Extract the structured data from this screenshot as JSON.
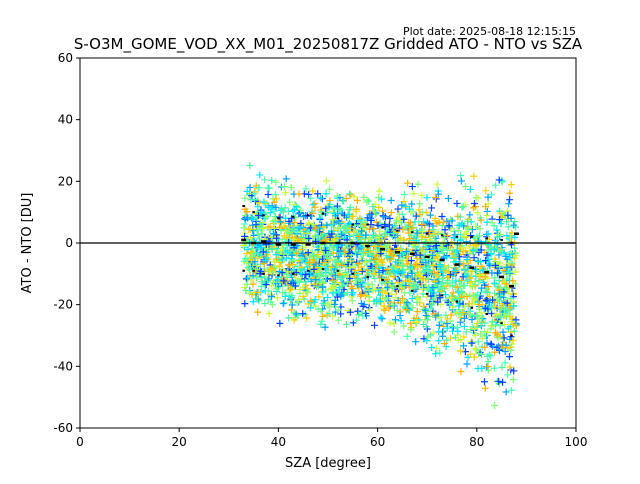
{
  "figure": {
    "plot_date": "Plot date: 2025-08-18 12:15:15",
    "title": "S-O3M_GOME_VOD_XX_M01_20250817Z Gridded ATO - NTO vs SZA"
  },
  "chart_data": {
    "type": "scatter",
    "title": "S-O3M_GOME_VOD_XX_M01_20250817Z Gridded ATO - NTO vs SZA",
    "xlabel": "SZA [degree]",
    "ylabel": "ATO - NTO [DU]",
    "xlim": [
      0,
      100
    ],
    "ylim": [
      -60,
      60
    ],
    "xticks": [
      0,
      20,
      40,
      60,
      80,
      100
    ],
    "yticks": [
      -60,
      -40,
      -20,
      0,
      20,
      40,
      60
    ],
    "grid": false,
    "zero_line": 0,
    "marker": "+",
    "scatter_envelope": {
      "sza": [
        33,
        36,
        40,
        44,
        48,
        52,
        56,
        60,
        64,
        68,
        72,
        76,
        80,
        84,
        88
      ],
      "upper": [
        27,
        27,
        26,
        25,
        25,
        24,
        24,
        24,
        24,
        23,
        24,
        25,
        27,
        30,
        30
      ],
      "lower": [
        -25,
        -28,
        -31,
        -33,
        -33,
        -32,
        -30,
        -33,
        -36,
        -38,
        -41,
        -45,
        -55,
        -60,
        -60
      ],
      "colors": [
        "#00e5ff",
        "#4dffb0",
        "#50f0a0",
        "#7cff7a",
        "#c8ff3c",
        "#ffd000",
        "#ffb000",
        "#00a0ff",
        "#0040ff"
      ]
    },
    "series": [
      {
        "type": "mean",
        "x": [
          33,
          35,
          37,
          40,
          43,
          46,
          49,
          52,
          55,
          58,
          61,
          64,
          67,
          70,
          73,
          76,
          79,
          82,
          85,
          87,
          88
        ],
        "y": [
          1,
          0,
          0.5,
          -0.5,
          -0.5,
          -0.5,
          0,
          0,
          0,
          -1,
          -2,
          -3,
          -3.5,
          -4.5,
          -5.5,
          -7,
          -8,
          -9.5,
          -11,
          -14,
          3
        ]
      },
      {
        "type": "mean_plus_std",
        "x": [
          33,
          35,
          37,
          40,
          43,
          46,
          49,
          52,
          55,
          58,
          61,
          64,
          67,
          70,
          73,
          76,
          79,
          82,
          85,
          87
        ],
        "y": [
          12,
          10,
          9,
          8,
          8.5,
          9,
          9.5,
          8,
          6,
          6,
          5,
          4,
          3.5,
          3,
          2.5,
          2,
          2,
          1.5,
          1,
          0
        ]
      },
      {
        "type": "mean_minus_std",
        "x": [
          33,
          35,
          37,
          40,
          43,
          46,
          49,
          52,
          55,
          58,
          61,
          64,
          67,
          70,
          73,
          76,
          79,
          82,
          85,
          87
        ],
        "y": [
          -9,
          -9,
          -10,
          -10.5,
          -10,
          -9,
          -8.5,
          -9,
          -10,
          -11,
          -12,
          -14,
          -15.5,
          -16.5,
          -17,
          -19,
          -21,
          -23,
          -26,
          -30
        ]
      }
    ]
  }
}
